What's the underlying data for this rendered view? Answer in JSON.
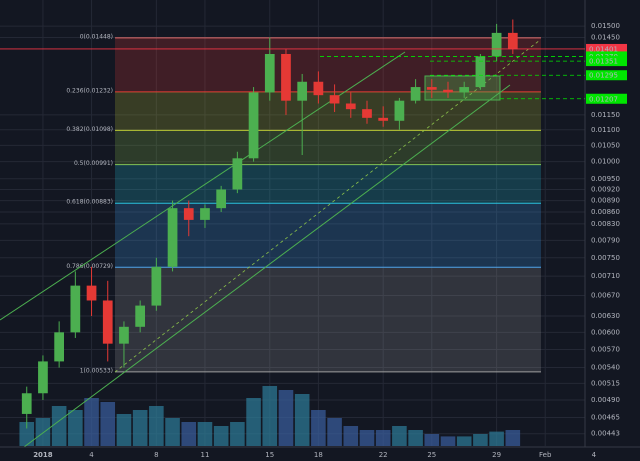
{
  "chart_data": {
    "type": "candlestick",
    "log_scale": true,
    "grid": true,
    "up_color": "#4caf50",
    "down_color": "#e53935",
    "x": [
      0,
      1,
      2,
      3,
      4,
      5,
      6,
      7,
      8,
      9,
      10,
      11,
      12,
      13,
      14,
      15,
      16,
      17,
      18,
      19,
      20,
      21,
      22,
      23,
      24,
      25,
      26,
      27,
      28,
      29,
      30
    ],
    "open": [
      0.0047,
      0.005,
      0.0055,
      0.006,
      0.0069,
      0.0066,
      0.0058,
      0.0061,
      0.0065,
      0.0073,
      0.0087,
      0.0084,
      0.0087,
      0.0092,
      0.0101,
      0.0123,
      0.0138,
      0.012,
      0.0127,
      0.0122,
      0.0119,
      0.0117,
      0.0114,
      0.0113,
      0.012,
      0.0125,
      0.0124,
      0.0123,
      0.0125,
      0.0137,
      0.0147
    ],
    "high": [
      0.0051,
      0.0056,
      0.0062,
      0.0072,
      0.0073,
      0.007,
      0.0062,
      0.0066,
      0.0075,
      0.0089,
      0.0089,
      0.0088,
      0.0093,
      0.0103,
      0.0125,
      0.0145,
      0.014,
      0.013,
      0.0131,
      0.0126,
      0.0123,
      0.012,
      0.0118,
      0.0121,
      0.0128,
      0.0128,
      0.0127,
      0.0127,
      0.0138,
      0.0151,
      0.0153
    ],
    "low": [
      0.0045,
      0.0049,
      0.0054,
      0.0059,
      0.0063,
      0.0055,
      0.0054,
      0.006,
      0.0064,
      0.0072,
      0.008,
      0.0082,
      0.0086,
      0.0091,
      0.01,
      0.012,
      0.0115,
      0.0102,
      0.0119,
      0.0116,
      0.0114,
      0.0112,
      0.0111,
      0.011,
      0.0119,
      0.0121,
      0.0121,
      0.0121,
      0.0124,
      0.0135,
      0.0138
    ],
    "close": [
      0.005,
      0.0055,
      0.006,
      0.0069,
      0.0066,
      0.0058,
      0.0061,
      0.0065,
      0.0073,
      0.0087,
      0.0084,
      0.0087,
      0.0092,
      0.0101,
      0.0123,
      0.0138,
      0.012,
      0.0127,
      0.0122,
      0.0119,
      0.0117,
      0.0114,
      0.0113,
      0.012,
      0.0125,
      0.0124,
      0.0123,
      0.0125,
      0.0137,
      0.0147,
      0.014
    ],
    "volume": [
      30,
      35,
      50,
      45,
      60,
      55,
      40,
      45,
      50,
      35,
      30,
      30,
      25,
      30,
      60,
      75,
      70,
      65,
      45,
      35,
      25,
      20,
      20,
      25,
      20,
      15,
      12,
      12,
      15,
      18,
      20
    ],
    "xlim": [
      -1.65,
      37.85
    ],
    "xticks": [
      {
        "value": 1,
        "label": "2018"
      },
      4,
      8,
      11,
      15,
      18,
      22,
      25,
      29,
      {
        "value": 32,
        "label": "Feb"
      },
      {
        "value": 35,
        "label": "4"
      }
    ],
    "ylim": [
      0.00427,
      0.01622
    ],
    "yticks": [
      {
        "value": 0.015,
        "label": "0.01500"
      },
      {
        "value": 0.0145,
        "label": "0.01450"
      },
      {
        "value": 0.0115,
        "label": "0.01150"
      },
      {
        "value": 0.011,
        "label": "0.01100"
      },
      {
        "value": 0.0105,
        "label": "0.01050"
      },
      {
        "value": 0.01,
        "label": "0.01000"
      },
      {
        "value": 0.0095,
        "label": "0.00950"
      },
      {
        "value": 0.0092,
        "label": "0.00920"
      },
      {
        "value": 0.0089,
        "label": "0.00890"
      },
      {
        "value": 0.0086,
        "label": "0.00860"
      },
      {
        "value": 0.0083,
        "label": "0.00830"
      },
      {
        "value": 0.0079,
        "label": "0.00790"
      },
      {
        "value": 0.0075,
        "label": "0.00750"
      },
      {
        "value": 0.0071,
        "label": "0.00710"
      },
      {
        "value": 0.0067,
        "label": "0.00670"
      },
      {
        "value": 0.0063,
        "label": "0.00630"
      },
      {
        "value": 0.006,
        "label": "0.00600"
      },
      {
        "value": 0.0057,
        "label": "0.00570"
      },
      {
        "value": 0.0054,
        "label": "0.00540"
      },
      {
        "value": 0.00515,
        "label": "0.00515"
      },
      {
        "value": 0.0049,
        "label": "0.00490"
      },
      {
        "value": 0.00465,
        "label": "0.00465"
      },
      {
        "value": 0.00443,
        "label": "0.00443"
      }
    ],
    "fib_levels": [
      {
        "value": 0.01448,
        "label": "0(0.01448)",
        "color": "#e57373"
      },
      {
        "value": 0.01232,
        "label": "0.236(0.01232)",
        "color": "#e53935"
      },
      {
        "value": 0.01098,
        "label": "0.382(0.01098)",
        "color": "#c0ca33"
      },
      {
        "value": 0.00991,
        "label": "0.5(0.00991)",
        "color": "#8bc34a"
      },
      {
        "value": 0.00883,
        "label": "0.618(0.00883)",
        "color": "#26c6da"
      },
      {
        "value": 0.00729,
        "label": "0.786(0.00729)",
        "color": "#42a5f5"
      },
      {
        "value": 0.00533,
        "label": "1(0.00533)",
        "color": "#9e9e9e"
      }
    ],
    "price_markers": [
      {
        "value": 0.01401,
        "label": "0.01401",
        "color": "#f23645"
      },
      {
        "value": 0.0137,
        "label": "0.01370",
        "color": "#00e600"
      },
      {
        "value": 0.01351,
        "label": "0.01351",
        "color": "#00e600"
      },
      {
        "value": 0.01295,
        "label": "0.01295",
        "color": "#00e600"
      },
      {
        "value": 0.01207,
        "label": "0.01207",
        "color": "#00e600"
      }
    ]
  }
}
